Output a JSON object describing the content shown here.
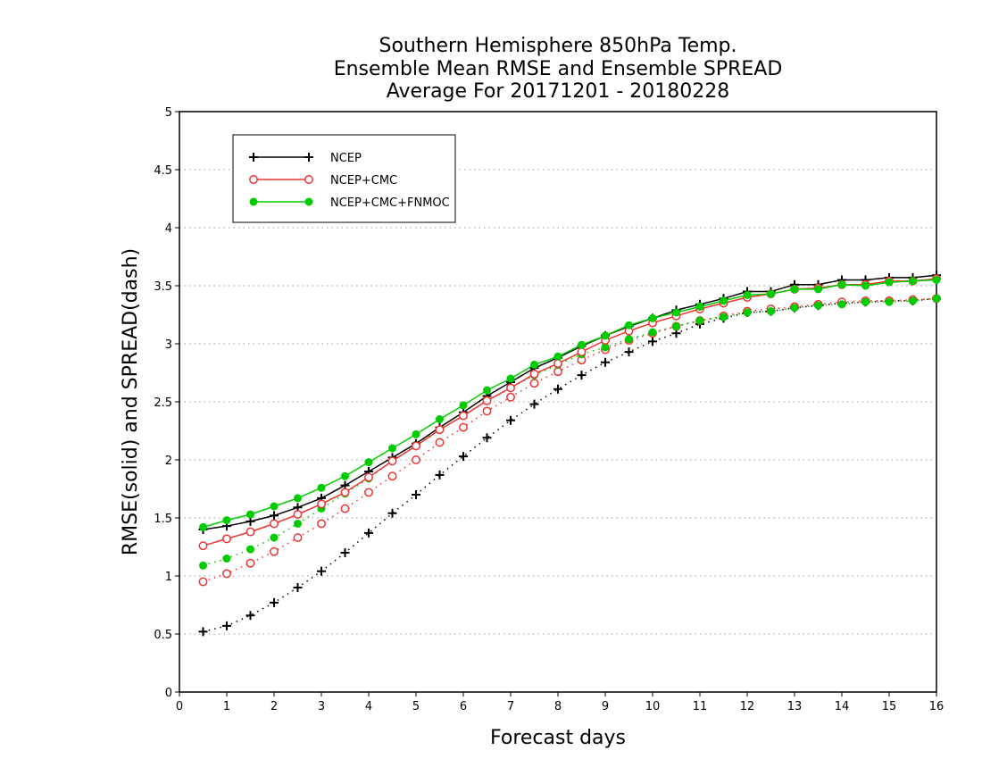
{
  "chart_data": {
    "type": "line",
    "title": [
      "Southern Hemisphere 850hPa Temp.",
      "Ensemble Mean RMSE and Ensemble SPREAD",
      "Average For 20171201 - 20180228"
    ],
    "xlabel": "Forecast days",
    "ylabel": "RMSE(solid) and SPREAD(dash)",
    "xlim": [
      0,
      16
    ],
    "ylim": [
      0,
      5
    ],
    "xticks": [
      "0",
      "1",
      "2",
      "3",
      "4",
      "5",
      "6",
      "7",
      "8",
      "9",
      "10",
      "11",
      "12",
      "13",
      "14",
      "15",
      "16"
    ],
    "yticks": [
      "0",
      "0.5",
      "1",
      "1.5",
      "2",
      "2.5",
      "3",
      "3.5",
      "4",
      "4.5",
      "5"
    ],
    "grid": "horizontal dotted",
    "legend_position": "top-left",
    "x": [
      0.5,
      1,
      1.5,
      2,
      2.5,
      3,
      3.5,
      4,
      4.5,
      5,
      5.5,
      6,
      6.5,
      7,
      7.5,
      8,
      8.5,
      9,
      9.5,
      10,
      10.5,
      11,
      11.5,
      12,
      12.5,
      13,
      13.5,
      14,
      14.5,
      15,
      15.5,
      16
    ],
    "series": [
      {
        "name": "NCEP",
        "kind": "rmse",
        "color": "#000000",
        "marker": "plus",
        "values": [
          1.4,
          1.43,
          1.47,
          1.52,
          1.59,
          1.67,
          1.78,
          1.9,
          2.02,
          2.14,
          2.28,
          2.41,
          2.55,
          2.67,
          2.79,
          2.88,
          2.98,
          3.07,
          3.15,
          3.22,
          3.29,
          3.34,
          3.39,
          3.45,
          3.45,
          3.51,
          3.51,
          3.55,
          3.55,
          3.57,
          3.57,
          3.59
        ]
      },
      {
        "name": "NCEP+CMC",
        "kind": "rmse",
        "color": "#ee3333",
        "marker": "open-circle",
        "values": [
          1.26,
          1.32,
          1.38,
          1.45,
          1.53,
          1.62,
          1.72,
          1.85,
          1.99,
          2.12,
          2.26,
          2.38,
          2.51,
          2.62,
          2.74,
          2.83,
          2.93,
          3.03,
          3.11,
          3.18,
          3.24,
          3.3,
          3.35,
          3.4,
          3.43,
          3.47,
          3.48,
          3.51,
          3.51,
          3.54,
          3.54,
          3.56
        ]
      },
      {
        "name": "NCEP+CMC+FNMOC",
        "kind": "rmse",
        "color": "#00cc00",
        "marker": "filled-circle",
        "values": [
          1.42,
          1.48,
          1.53,
          1.6,
          1.67,
          1.76,
          1.86,
          1.98,
          2.1,
          2.22,
          2.35,
          2.47,
          2.6,
          2.7,
          2.82,
          2.89,
          2.99,
          3.07,
          3.16,
          3.22,
          3.27,
          3.32,
          3.37,
          3.42,
          3.43,
          3.47,
          3.47,
          3.51,
          3.5,
          3.53,
          3.54,
          3.55
        ]
      },
      {
        "name": "NCEP",
        "kind": "spread",
        "color": "#000000",
        "marker": "plus",
        "values": [
          0.52,
          0.57,
          0.66,
          0.77,
          0.9,
          1.04,
          1.2,
          1.37,
          1.54,
          1.7,
          1.87,
          2.03,
          2.19,
          2.34,
          2.48,
          2.61,
          2.73,
          2.84,
          2.93,
          3.02,
          3.09,
          3.17,
          3.22,
          3.27,
          3.28,
          3.31,
          3.33,
          3.35,
          3.36,
          3.37,
          3.37,
          3.39
        ]
      },
      {
        "name": "NCEP+CMC",
        "kind": "spread",
        "color": "#ee3333",
        "marker": "open-circle",
        "values": [
          0.95,
          1.02,
          1.11,
          1.21,
          1.33,
          1.45,
          1.58,
          1.72,
          1.86,
          2.0,
          2.15,
          2.28,
          2.42,
          2.54,
          2.66,
          2.76,
          2.86,
          2.95,
          3.03,
          3.09,
          3.15,
          3.2,
          3.24,
          3.28,
          3.3,
          3.32,
          3.34,
          3.36,
          3.37,
          3.37,
          3.38,
          3.39
        ]
      },
      {
        "name": "NCEP+CMC+FNMOC",
        "kind": "spread",
        "color": "#00cc00",
        "marker": "filled-circle",
        "values": [
          1.09,
          1.15,
          1.23,
          1.33,
          1.45,
          1.58,
          1.71,
          1.84,
          1.99,
          2.13,
          2.26,
          2.38,
          2.51,
          2.62,
          2.73,
          2.82,
          2.91,
          2.97,
          3.04,
          3.1,
          3.15,
          3.2,
          3.23,
          3.27,
          3.28,
          3.31,
          3.33,
          3.34,
          3.36,
          3.36,
          3.37,
          3.39
        ]
      }
    ],
    "legend": [
      {
        "name": "NCEP",
        "color": "#000000",
        "marker": "plus"
      },
      {
        "name": "NCEP+CMC",
        "color": "#ee3333",
        "marker": "open-circle"
      },
      {
        "name": "NCEP+CMC+FNMOC",
        "color": "#00cc00",
        "marker": "filled-circle"
      }
    ]
  }
}
